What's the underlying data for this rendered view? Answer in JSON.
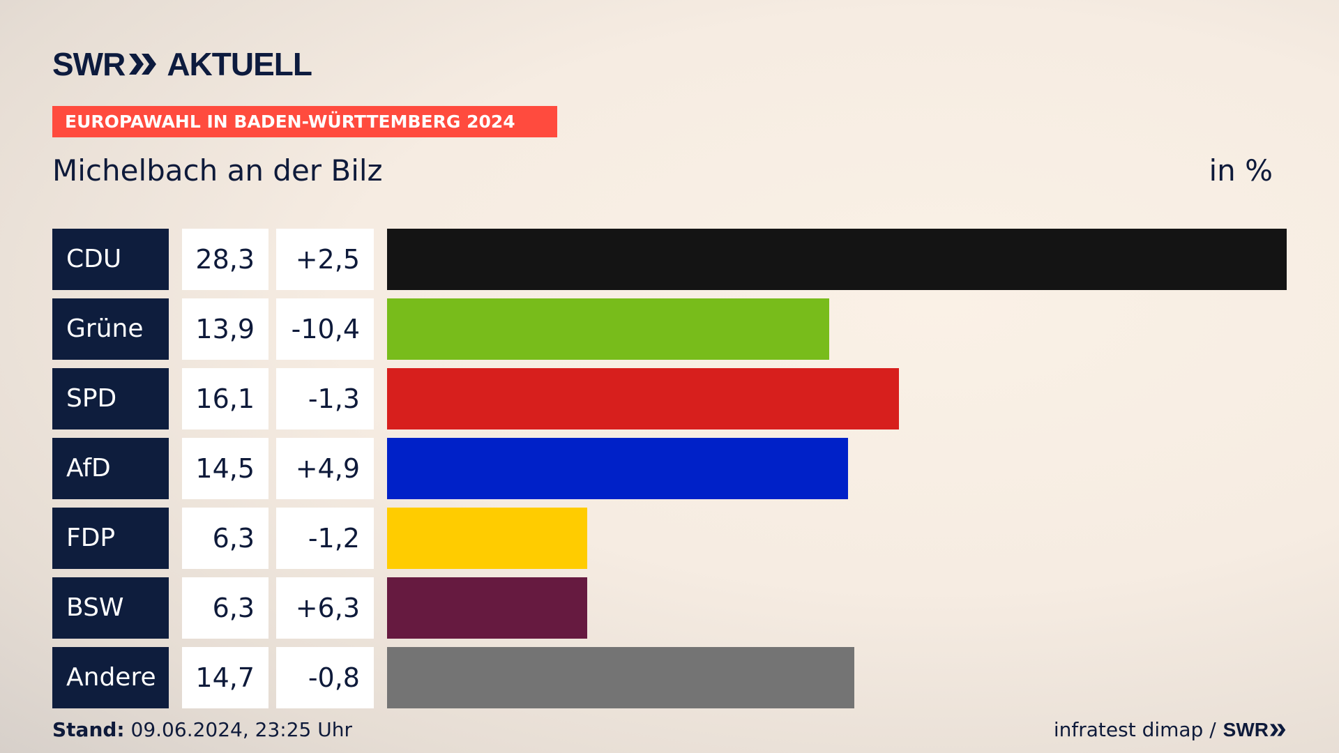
{
  "brand": {
    "swr": "SWR",
    "name": "AKTUELL"
  },
  "banner": "EUROPAWAHL IN BADEN-WÜRTTEMBERG 2024",
  "location": "Michelbach an der Bilz",
  "unit": "in %",
  "colors": {
    "banner": "#ff4b3e",
    "label_bg": "#0e1d3d",
    "text": "#0e1a3a"
  },
  "chart_data": {
    "type": "bar",
    "orientation": "horizontal",
    "title": "Michelbach an der Bilz",
    "unit_label": "in %",
    "categories": [
      "CDU",
      "Grüne",
      "SPD",
      "AfD",
      "FDP",
      "BSW",
      "Andere"
    ],
    "values": [
      28.3,
      13.9,
      16.1,
      14.5,
      6.3,
      6.3,
      14.7
    ],
    "value_labels": [
      "28,3",
      "13,9",
      "16,1",
      "14,5",
      "6,3",
      "6,3",
      "14,7"
    ],
    "diff_labels": [
      "+2,5",
      "-10,4",
      "-1,3",
      "+4,9",
      "-1,2",
      "+6,3",
      "-0,8"
    ],
    "diffs": [
      2.5,
      -10.4,
      -1.3,
      4.9,
      -1.2,
      6.3,
      -0.8
    ],
    "bar_colors": [
      "#141414",
      "#78bc1b",
      "#d71f1d",
      "#0021c8",
      "#ffcc00",
      "#661a40",
      "#747474"
    ],
    "xlim": [
      0,
      28.3
    ]
  },
  "footer": {
    "stand_label": "Stand:",
    "stand_value": "09.06.2024, 23:25 Uhr",
    "source": "infratest dimap /",
    "source_brand": "SWR"
  }
}
